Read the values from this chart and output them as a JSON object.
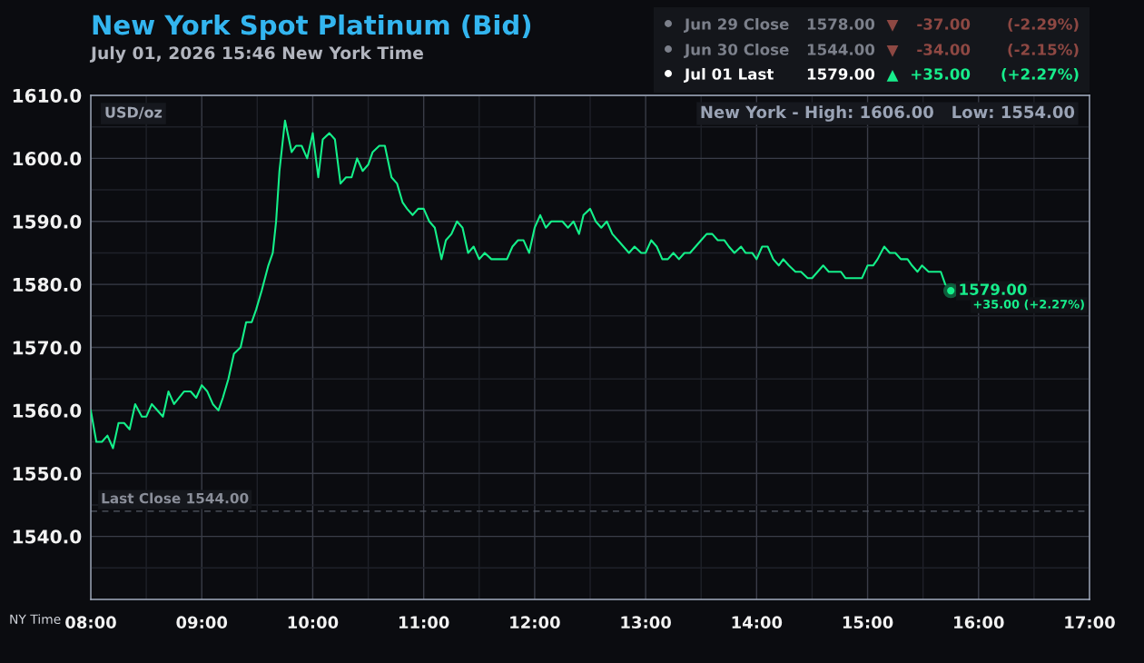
{
  "chart_data": {
    "type": "line",
    "title": "New York Spot Platinum (Bid)",
    "subtitle": "July 01, 2026 15:46 New York Time",
    "xlabel": "NY Time",
    "ylabel": "USD/oz",
    "x": [
      8.0,
      8.05,
      8.1,
      8.15,
      8.2,
      8.25,
      8.3,
      8.35,
      8.4,
      8.46,
      8.5,
      8.55,
      8.65,
      8.7,
      8.75,
      8.84,
      8.9,
      8.95,
      9.0,
      9.05,
      9.1,
      9.15,
      9.19,
      9.24,
      9.29,
      9.35,
      9.4,
      9.45,
      9.49,
      9.54,
      9.6,
      9.64,
      9.67,
      9.7,
      9.75,
      9.81,
      9.85,
      9.9,
      9.95,
      10.0,
      10.05,
      10.09,
      10.15,
      10.2,
      10.25,
      10.3,
      10.35,
      10.4,
      10.45,
      10.5,
      10.54,
      10.6,
      10.65,
      10.71,
      10.76,
      10.81,
      10.85,
      10.9,
      10.95,
      11.0,
      11.05,
      11.1,
      11.16,
      11.2,
      11.25,
      11.3,
      11.35,
      11.4,
      11.45,
      11.5,
      11.55,
      11.61,
      11.75,
      11.8,
      11.85,
      11.9,
      11.95,
      12.0,
      12.05,
      12.1,
      12.15,
      12.25,
      12.3,
      12.35,
      12.4,
      12.44,
      12.5,
      12.55,
      12.6,
      12.65,
      12.7,
      12.75,
      12.8,
      12.85,
      12.9,
      12.96,
      13.0,
      13.05,
      13.1,
      13.15,
      13.2,
      13.25,
      13.3,
      13.35,
      13.4,
      13.45,
      13.5,
      13.55,
      13.6,
      13.65,
      13.71,
      13.75,
      13.8,
      13.86,
      13.9,
      13.96,
      14.0,
      14.05,
      14.1,
      14.15,
      14.2,
      14.24,
      14.29,
      14.35,
      14.4,
      14.46,
      14.5,
      14.55,
      14.6,
      14.65,
      14.76,
      14.8,
      14.95,
      15.0,
      15.05,
      15.09,
      15.15,
      15.2,
      15.25,
      15.3,
      15.36,
      15.4,
      15.45,
      15.49,
      15.55,
      15.66,
      15.7,
      15.75
    ],
    "series": [
      {
        "color": "#14f08a",
        "line_style": "solid",
        "values": [
          1560,
          1555,
          1555,
          1556,
          1554,
          1558,
          1558,
          1557,
          1561,
          1559,
          1559,
          1561,
          1559,
          1563,
          1561,
          1563,
          1563,
          1562,
          1564,
          1563,
          1561,
          1560,
          1562,
          1565,
          1569,
          1570,
          1574,
          1574,
          1576,
          1579,
          1583,
          1585,
          1590,
          1598,
          1606,
          1601,
          1602,
          1602,
          1600,
          1604,
          1597,
          1603,
          1604,
          1603,
          1596,
          1597,
          1597,
          1600,
          1598,
          1599,
          1601,
          1602,
          1602,
          1597,
          1596,
          1593,
          1592,
          1591,
          1592,
          1592,
          1590,
          1589,
          1584,
          1587,
          1588,
          1590,
          1589,
          1585,
          1586,
          1584,
          1585,
          1584,
          1584,
          1586,
          1587,
          1587,
          1585,
          1589,
          1591,
          1589,
          1590,
          1590,
          1589,
          1590,
          1588,
          1591,
          1592,
          1590,
          1589,
          1590,
          1588,
          1587,
          1586,
          1585,
          1586,
          1585,
          1585,
          1587,
          1586,
          1584,
          1584,
          1585,
          1584,
          1585,
          1585,
          1586,
          1587,
          1588,
          1588,
          1587,
          1587,
          1586,
          1585,
          1586,
          1585,
          1585,
          1584,
          1586,
          1586,
          1584,
          1583,
          1584,
          1583,
          1582,
          1582,
          1581,
          1581,
          1582,
          1583,
          1582,
          1582,
          1581,
          1581,
          1583,
          1583,
          1584,
          1586,
          1585,
          1585,
          1584,
          1584,
          1583,
          1582,
          1583,
          1582,
          1582,
          1580,
          1579
        ]
      },
      {
        "type": "scatter",
        "color": "#14f08a",
        "marker": "circle",
        "x": [
          15.75
        ],
        "values": [
          1579
        ]
      }
    ],
    "xlim": [
      8,
      17
    ],
    "xticks": [
      {
        "value": 8,
        "label": "08:00"
      },
      {
        "value": 8.5,
        "label": null
      },
      {
        "value": 9,
        "label": "09:00"
      },
      {
        "value": 9.5,
        "label": null
      },
      {
        "value": 10,
        "label": "10:00"
      },
      {
        "value": 10.5,
        "label": null
      },
      {
        "value": 11,
        "label": "11:00"
      },
      {
        "value": 11.5,
        "label": null
      },
      {
        "value": 12,
        "label": "12:00"
      },
      {
        "value": 12.5,
        "label": null
      },
      {
        "value": 13,
        "label": "13:00"
      },
      {
        "value": 13.5,
        "label": null
      },
      {
        "value": 14,
        "label": "14:00"
      },
      {
        "value": 14.5,
        "label": null
      },
      {
        "value": 15,
        "label": "15:00"
      },
      {
        "value": 15.5,
        "label": null
      },
      {
        "value": 16,
        "label": "16:00"
      },
      {
        "value": 16.5,
        "label": null
      },
      {
        "value": 17,
        "label": "17:00"
      }
    ],
    "ylim": [
      1530,
      1610
    ],
    "yticks": [
      {
        "value": 1535,
        "label": null
      },
      {
        "value": 1540,
        "label": "1540.0"
      },
      {
        "value": 1545,
        "label": null
      },
      {
        "value": 1550,
        "label": "1550.0"
      },
      {
        "value": 1555,
        "label": null
      },
      {
        "value": 1560,
        "label": "1560.0"
      },
      {
        "value": 1565,
        "label": null
      },
      {
        "value": 1570,
        "label": "1570.0"
      },
      {
        "value": 1575,
        "label": null
      },
      {
        "value": 1580,
        "label": "1580.0"
      },
      {
        "value": 1585,
        "label": null
      },
      {
        "value": 1590,
        "label": "1590.0"
      },
      {
        "value": 1595,
        "label": null
      },
      {
        "value": 1600,
        "label": "1600.0"
      },
      {
        "value": 1605,
        "label": null
      },
      {
        "value": 1610,
        "label": "1610.0"
      }
    ],
    "grid": true,
    "ref_lines": [
      {
        "axis": "y",
        "value": 1544,
        "label": "Last Close 1544.00",
        "color": "#555a66",
        "line_style": "dashed"
      }
    ],
    "annotations": [
      "Jun 29 Close",
      "1578.00",
      "▼",
      "-37.00",
      "(-2.29%)",
      "Jun 30 Close",
      "1544.00",
      "▼",
      "-34.00",
      "(-2.15%)",
      "Jul 01 Last",
      "1579.00",
      "▲",
      "+35.00",
      "(+2.27%)",
      "New York - High: 1606.00   Low: 1554.00",
      "+35.00 (+2.27%)",
      {
        "text": "1579.00",
        "x": 15.75,
        "y": 1579
      }
    ]
  }
}
